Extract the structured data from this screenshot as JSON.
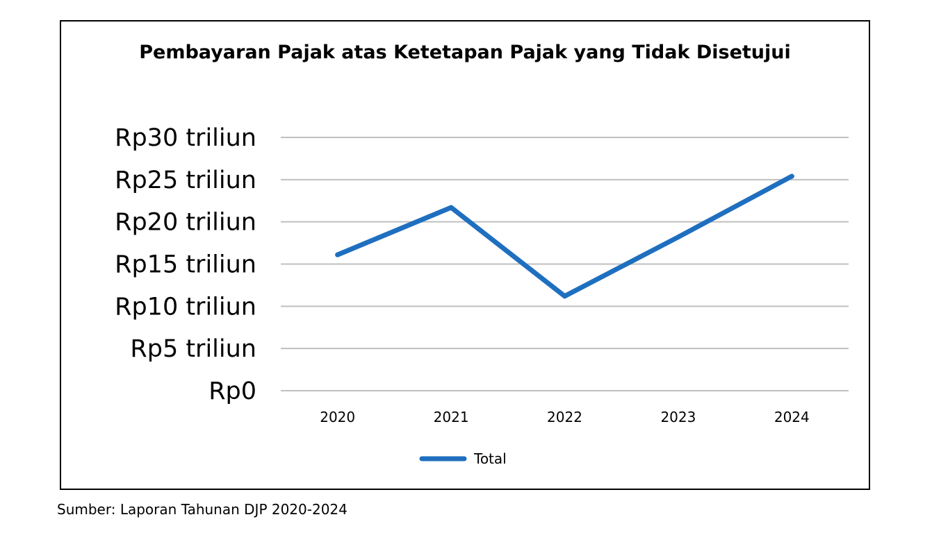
{
  "chart_data": {
    "type": "line",
    "title": "Pembayaran Pajak atas Ketetapan Pajak yang Tidak Disetujui",
    "xlabel": "",
    "ylabel": "",
    "categories": [
      "2020",
      "2021",
      "2022",
      "2023",
      "2024"
    ],
    "series": [
      {
        "name": "Total",
        "values": [
          16.1,
          21.7,
          11.2,
          18.2,
          25.4
        ],
        "color": "#1F6FBF"
      }
    ],
    "ylim": [
      0,
      30
    ],
    "yticks": [
      0,
      5,
      10,
      15,
      20,
      25,
      30
    ],
    "ytick_labels": [
      "Rp0",
      "Rp5 triliun",
      "Rp10 triliun",
      "Rp15 triliun",
      "Rp20 triliun",
      "Rp25 triliun",
      "Rp30 triliun"
    ],
    "grid": true,
    "grid_color": "#BFBFBF",
    "legend": "bottom"
  },
  "source_note": "Sumber: Laporan Tahunan DJP 2020-2024"
}
